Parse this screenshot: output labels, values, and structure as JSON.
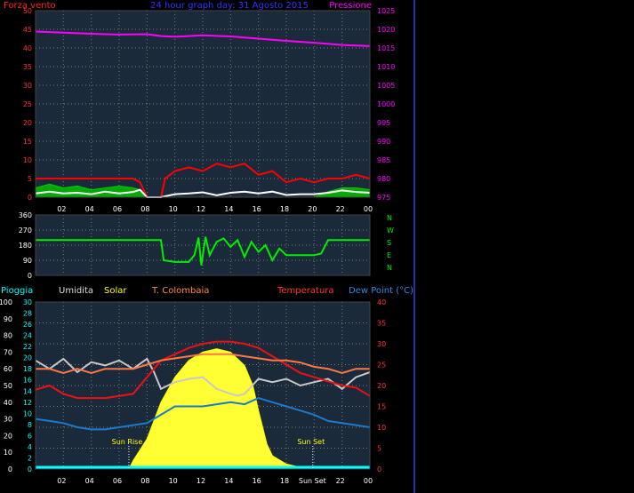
{
  "chart_data": [
    {
      "type": "line",
      "title": "24 hour graph day: 31 Agosto 2015",
      "left_axis_label": "Forza vento",
      "right_axis_label": "Pressione",
      "ylim_left": [
        0,
        50
      ],
      "yticks_left": [
        "0",
        "5",
        "10",
        "15",
        "20",
        "25",
        "30",
        "35",
        "40",
        "45",
        "50"
      ],
      "ylim_right": [
        975,
        1025
      ],
      "yticks_right": [
        "975",
        "980",
        "985",
        "990",
        "995",
        "1000",
        "1005",
        "1010",
        "1015",
        "1020",
        "1025"
      ],
      "xticks": [
        "02",
        "04",
        "06",
        "08",
        "10",
        "12",
        "14",
        "16",
        "18",
        "20",
        "22",
        "00"
      ],
      "series": [
        {
          "key": "pressure",
          "color": "#ff00ff",
          "x": [
            0,
            2,
            4,
            6,
            8,
            9,
            10,
            12,
            14,
            16,
            18,
            20,
            22,
            24
          ],
          "y": [
            1019.4,
            1019.1,
            1018.8,
            1018.6,
            1018.7,
            1018.2,
            1018.0,
            1018.4,
            1018.1,
            1017.5,
            1016.9,
            1016.4,
            1015.8,
            1015.5
          ]
        },
        {
          "key": "gust",
          "color": "#ff0000",
          "x": [
            0,
            1,
            2,
            3,
            4,
            5,
            6,
            7,
            7.5,
            8,
            9,
            9.3,
            10,
            11,
            12,
            13,
            14,
            15,
            16,
            17,
            18,
            19,
            20,
            21,
            22,
            23,
            24
          ],
          "y": [
            5,
            5,
            5,
            5,
            5,
            5,
            5,
            5,
            4,
            0,
            0,
            5,
            7,
            8,
            7,
            9,
            8,
            9,
            6,
            7,
            4,
            5,
            4,
            5,
            5,
            6,
            5
          ]
        },
        {
          "key": "avg_wind",
          "color": "#00cc00",
          "x": [
            0,
            1,
            2,
            3,
            4,
            5,
            6,
            7,
            7.5,
            8,
            9,
            10,
            20,
            21,
            22,
            23,
            24
          ],
          "y": [
            2.5,
            3.5,
            2.5,
            3,
            2,
            2.5,
            3,
            2.5,
            2,
            0,
            0,
            0,
            0,
            1.5,
            2.5,
            2.5,
            2
          ],
          "fill": "#00aa00"
        },
        {
          "key": "wind_white",
          "color": "#ffffff",
          "x": [
            0,
            1,
            2,
            3,
            4,
            5,
            6,
            7,
            7.5,
            8,
            9,
            10,
            11,
            12,
            13,
            14,
            15,
            16,
            17,
            18,
            19,
            20,
            21,
            22,
            23,
            24
          ],
          "y": [
            1,
            1.5,
            1,
            1.2,
            0.8,
            1.5,
            1,
            1.4,
            2,
            0,
            0,
            0.8,
            1,
            1.3,
            0.5,
            1.2,
            1.5,
            1,
            1.5,
            0.6,
            0.8,
            0.8,
            1.2,
            1.8,
            1.4,
            1.2
          ]
        }
      ]
    },
    {
      "type": "line",
      "title": "",
      "ylim": [
        0,
        360
      ],
      "yticks": [
        "0",
        "90",
        "180",
        "270",
        "360"
      ],
      "right_labels": [
        "N",
        "W",
        "S",
        "E",
        "N"
      ],
      "xticks": [
        "02",
        "04",
        "06",
        "08",
        "10",
        "12",
        "14",
        "16",
        "18",
        "20",
        "22",
        "00"
      ],
      "series": [
        {
          "key": "direction",
          "color": "#00ee00",
          "x": [
            0,
            9,
            9.2,
            10,
            11,
            11.4,
            11.7,
            11.9,
            12.2,
            12.5,
            13,
            13.5,
            14,
            14.5,
            15,
            15.5,
            16,
            16.5,
            17,
            17.5,
            18,
            19,
            20,
            20.5,
            21,
            22,
            24
          ],
          "y": [
            210,
            210,
            90,
            80,
            80,
            120,
            225,
            60,
            230,
            120,
            200,
            220,
            170,
            210,
            110,
            200,
            140,
            180,
            90,
            160,
            120,
            120,
            120,
            130,
            210,
            210,
            210
          ]
        }
      ]
    },
    {
      "type": "area",
      "title": "",
      "legend": [
        "Pioggia",
        "Umidita",
        "Solar",
        "T. Colombaia",
        "Temperatura",
        "Dew Point (°C)"
      ],
      "ylim_left1": [
        0,
        100
      ],
      "yticks_left1": [
        "0",
        "10",
        "20",
        "30",
        "40",
        "50",
        "60",
        "70",
        "80",
        "90",
        "100"
      ],
      "ylim_left2": [
        0,
        30
      ],
      "yticks_left2": [
        "0",
        "2",
        "4",
        "6",
        "8",
        "10",
        "12",
        "14",
        "16",
        "18",
        "20",
        "22",
        "24",
        "26",
        "28",
        "30"
      ],
      "ylim_right": [
        0,
        40
      ],
      "yticks_right": [
        "0",
        "5",
        "10",
        "15",
        "20",
        "25",
        "30",
        "35",
        "40"
      ],
      "xticks": [
        "02",
        "04",
        "06",
        "08",
        "10",
        "12",
        "14",
        "16",
        "18",
        "Sun Set",
        "22",
        "00"
      ],
      "annotations": [
        "Sun Rise",
        "Sun Set"
      ],
      "sun_rise_hour": 6.7,
      "sun_set_hour": 19.9,
      "series": [
        {
          "key": "solar",
          "color": "#ffff00",
          "fill": "#ffff33",
          "x": [
            6.7,
            7,
            8,
            9,
            10,
            11,
            12,
            13,
            14,
            15,
            15.6,
            16,
            16.3,
            16.6,
            17,
            18,
            19,
            19.9
          ],
          "y": [
            0,
            5,
            18,
            40,
            55,
            65,
            70,
            72,
            70,
            62,
            50,
            35,
            25,
            15,
            8,
            3,
            1,
            0
          ]
        },
        {
          "key": "humidity",
          "color": "#c8c8c8",
          "x": [
            0,
            1,
            2,
            3,
            4,
            5,
            6,
            7,
            8,
            8.5,
            9,
            10,
            11,
            12,
            13,
            14,
            14.5,
            15,
            16,
            17,
            18,
            19,
            20,
            21,
            22,
            23,
            24
          ],
          "y": [
            65,
            60,
            66,
            58,
            64,
            62,
            65,
            60,
            66,
            58,
            48,
            52,
            54,
            55,
            48,
            45,
            44,
            45,
            54,
            52,
            54,
            50,
            52,
            54,
            48,
            55,
            58
          ]
        },
        {
          "key": "temperature",
          "color": "#ee1111",
          "x": [
            0,
            1,
            2,
            3,
            4,
            5,
            6,
            7,
            8,
            9,
            10,
            11,
            12,
            13,
            14,
            15,
            16,
            17,
            18,
            19,
            20,
            21,
            22,
            23,
            24
          ],
          "y": [
            19,
            20,
            18,
            17,
            17,
            17,
            17.5,
            18,
            22,
            26,
            27.5,
            29,
            30,
            30.5,
            30.5,
            30,
            29,
            27,
            25,
            23,
            22,
            21,
            20,
            19.5,
            17.5
          ]
        },
        {
          "key": "t_colombaia",
          "color": "#ff7744",
          "x": [
            0,
            1,
            2,
            3,
            4,
            5,
            6,
            7,
            8,
            9,
            10,
            11,
            12,
            13,
            14,
            15,
            16,
            17,
            18,
            19,
            20,
            21,
            22,
            23,
            24
          ],
          "y": [
            24,
            24,
            23,
            24,
            23,
            24,
            24,
            24,
            25,
            26,
            26.5,
            27,
            27.5,
            27.5,
            27.5,
            27,
            26.5,
            26,
            26,
            25.5,
            24.5,
            24,
            23,
            24,
            24
          ]
        },
        {
          "key": "dew_point",
          "color": "#1a7acc",
          "x": [
            0,
            1,
            2,
            3,
            4,
            5,
            6,
            7,
            8,
            9,
            10,
            11,
            12,
            13,
            14,
            15,
            16,
            17,
            18,
            19,
            20,
            21,
            22,
            23,
            24
          ],
          "y": [
            12,
            11.5,
            11,
            10,
            9.5,
            9.5,
            10,
            10.5,
            11,
            13,
            15,
            15,
            15,
            15.5,
            16,
            15.5,
            17,
            16,
            15,
            14,
            13,
            11.5,
            11,
            10.5,
            10
          ]
        },
        {
          "key": "rain",
          "color": "#00ffff",
          "x": [
            0,
            24
          ],
          "y": [
            0,
            0
          ]
        }
      ]
    }
  ]
}
